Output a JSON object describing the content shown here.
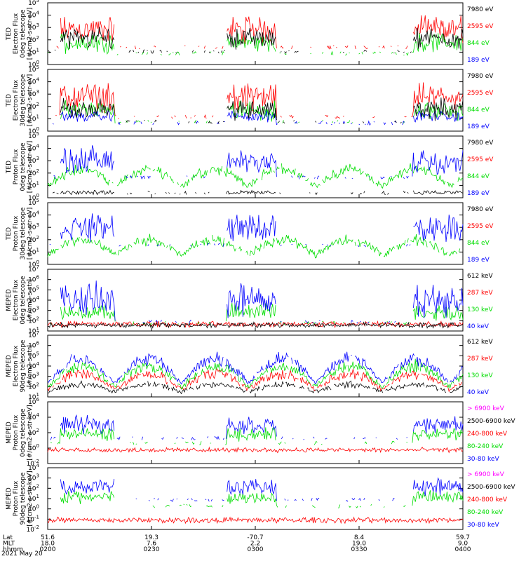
{
  "figure": {
    "date_label": "2021 May 20",
    "footer_row_labels": [
      "Lat",
      "MLT",
      "hhmm"
    ],
    "x_ticks": [
      {
        "lat": "51.6",
        "mlt": "18.0",
        "hhmm": "0200"
      },
      {
        "lat": "19.3",
        "mlt": "7.6",
        "hhmm": "0230"
      },
      {
        "lat": "-70.7",
        "mlt": "2.2",
        "hhmm": "0300"
      },
      {
        "lat": "8.4",
        "mlt": "19.0",
        "hhmm": "0330"
      },
      {
        "lat": "59.7",
        "mlt": "9.0",
        "hhmm": "0400"
      }
    ]
  },
  "colors": {
    "black": "#000000",
    "red": "#ff0000",
    "green": "#00dd00",
    "blue": "#0000ff",
    "magenta": "#ff00ff"
  },
  "chart_data": [
    {
      "type": "line",
      "ylabel": [
        "TED",
        "Electron Flux",
        "0deg telescope",
        "[#/cm2-s-str-eV]"
      ],
      "y_exponents": [
        0,
        1,
        2,
        3,
        4,
        5
      ],
      "log_scale": true,
      "legend": [
        {
          "name": "7980 eV",
          "color": "black"
        },
        {
          "name": "2595 eV",
          "color": "red"
        },
        {
          "name": "844 eV",
          "color": "green"
        },
        {
          "name": "189 eV",
          "color": "blue"
        }
      ]
    },
    {
      "type": "line",
      "ylabel": [
        "TED",
        "Electron Flux",
        "30deg telescope",
        "[#/cm2-s-str-eV]"
      ],
      "y_exponents": [
        0,
        1,
        2,
        3,
        4,
        5
      ],
      "log_scale": true,
      "legend": [
        {
          "name": "7980 eV",
          "color": "black"
        },
        {
          "name": "2595 eV",
          "color": "red"
        },
        {
          "name": "844 eV",
          "color": "green"
        },
        {
          "name": "189 eV",
          "color": "blue"
        }
      ]
    },
    {
      "type": "line",
      "ylabel": [
        "TED",
        "Proton Flux",
        "0deg telescope",
        "[#/cm2-s-str-eV]"
      ],
      "y_exponents": [
        0,
        1,
        2,
        3,
        4,
        5
      ],
      "log_scale": true,
      "legend": [
        {
          "name": "7980 eV",
          "color": "black"
        },
        {
          "name": "2595 eV",
          "color": "red"
        },
        {
          "name": "844 eV",
          "color": "green"
        },
        {
          "name": "189 eV",
          "color": "blue"
        }
      ]
    },
    {
      "type": "line",
      "ylabel": [
        "TED",
        "Proton Flux",
        "30deg telescope",
        "[#/cm2-s-str-eV]"
      ],
      "y_exponents": [
        0,
        1,
        2,
        3,
        4,
        5
      ],
      "log_scale": true,
      "legend": [
        {
          "name": "7980 eV",
          "color": "black"
        },
        {
          "name": "2595 eV",
          "color": "red"
        },
        {
          "name": "844 eV",
          "color": "green"
        },
        {
          "name": "189 eV",
          "color": "blue"
        }
      ]
    },
    {
      "type": "line",
      "ylabel": [
        "MEPED",
        "Electron Flux",
        "0deg telescope",
        "[#/cm2-s-str]"
      ],
      "y_exponents": [
        1,
        2,
        3,
        4,
        5,
        6,
        7
      ],
      "log_scale": true,
      "legend": [
        {
          "name": "612 keV",
          "color": "black"
        },
        {
          "name": "287 keV",
          "color": "red"
        },
        {
          "name": "130 keV",
          "color": "green"
        },
        {
          "name": "40 keV",
          "color": "blue"
        }
      ]
    },
    {
      "type": "line",
      "ylabel": [
        "MEPED",
        "Electron Flux",
        "90deg telescope",
        "[#/cm2-s-str]"
      ],
      "y_exponents": [
        1,
        2,
        3,
        4,
        5,
        6,
        7
      ],
      "log_scale": true,
      "legend": [
        {
          "name": "612 keV",
          "color": "black"
        },
        {
          "name": "287 keV",
          "color": "red"
        },
        {
          "name": "130 keV",
          "color": "green"
        },
        {
          "name": "40 keV",
          "color": "blue"
        }
      ]
    },
    {
      "type": "line",
      "ylabel": [
        "MEPED",
        "Proton Flux",
        "0deg telescope",
        "[#/cm2-s-str-keV]"
      ],
      "y_exponents": [
        -2,
        0,
        2,
        4,
        6
      ],
      "log_scale": true,
      "legend": [
        {
          "name": "> 6900 keV",
          "color": "magenta"
        },
        {
          "name": "2500-6900 keV",
          "color": "black"
        },
        {
          "name": "240-800 keV",
          "color": "red"
        },
        {
          "name": "80-240 keV",
          "color": "green"
        },
        {
          "name": "30-80 keV",
          "color": "blue"
        }
      ]
    },
    {
      "type": "line",
      "ylabel": [
        "MEPED",
        "Proton Flux",
        "90deg telescope",
        "[#/cm2-s-str-keV]"
      ],
      "y_exponents": [
        -2,
        -1,
        0,
        1,
        2,
        3,
        4
      ],
      "log_scale": true,
      "legend": [
        {
          "name": "> 6900 keV",
          "color": "magenta"
        },
        {
          "name": "2500-6900 keV",
          "color": "black"
        },
        {
          "name": "240-800 keV",
          "color": "red"
        },
        {
          "name": "80-240 keV",
          "color": "green"
        },
        {
          "name": "30-80 keV",
          "color": "blue"
        }
      ]
    }
  ]
}
